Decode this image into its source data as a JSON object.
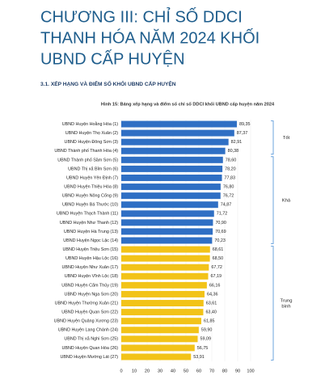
{
  "header": {
    "title_lines": [
      "CHƯƠNG III: CHỈ SỐ DDCI",
      "THANH HÓA NĂM 2024 KHỐI",
      "UBND CẤP HUYỆN"
    ],
    "section": "3.1. XẾP HẠNG VÀ ĐIỂM SỐ KHỐI UBND CẤP HUYỆN"
  },
  "chart_data": {
    "type": "hbar",
    "title": "Hình 15: Bảng xếp hạng và điểm số chỉ số DDCI khối UBND cấp huyện năm 2024",
    "categories": [
      "UBND Huyện Hoằng Hóa (1)",
      "UBND Huyện Thọ Xuân (2)",
      "UBND Huyện Đông Sơn (3)",
      "UBND Thành phố Thanh Hóa (4)",
      "UBND Thành phố Sầm Sơn (5)",
      "UBND Thị xã Bỉm Sơn (6)",
      "UBND Huyện Yên Định (7)",
      "UBND Huyện Thiệu Hóa (8)",
      "UBND Huyện Nông Cống (9)",
      "UBND Huyện Bá Thước (10)",
      "UBND Huyện Thạch Thành (11)",
      "UBND Huyện Như Thanh (12)",
      "UBND Huyện Hà Trung (13)",
      "UBND Huyện Ngọc Lặc (14)",
      "UBND Huyện Triệu Sơn (15)",
      "UBND Huyện Hậu Lộc (16)",
      "UBND Huyện Như Xuân (17)",
      "UBND Huyện Vĩnh Lộc (18)",
      "UBND Huyện Cẩm Thủy (19)",
      "UBND Huyện Nga Sơn (20)",
      "UBND Huyện Thường Xuân (21)",
      "UBND Huyện Quan Sơn (22)",
      "UBND Huyện Quảng Xương (23)",
      "UBND Huyện Lang Chánh (24)",
      "UBND Thị xã Nghi Sơn (25)",
      "UBND Huyện Quan Hóa (26)",
      "UBND Huyện Mường Lát (27)"
    ],
    "series": [
      {
        "name": "Tốt",
        "color": "#2f6fc4",
        "values": [
          89.35,
          87.37,
          82.91,
          80.38,
          null,
          null,
          null,
          null,
          null,
          null,
          null,
          null,
          null,
          null,
          null,
          null,
          null,
          null,
          null,
          null,
          null,
          null,
          null,
          null,
          null,
          null,
          null
        ],
        "value_labels": [
          "89,35",
          "87,37",
          "82,91",
          "80,38",
          null,
          null,
          null,
          null,
          null,
          null,
          null,
          null,
          null,
          null,
          null,
          null,
          null,
          null,
          null,
          null,
          null,
          null,
          null,
          null,
          null,
          null,
          null
        ]
      },
      {
        "name": "Khá",
        "color": "#2f6fc4",
        "values": [
          null,
          null,
          null,
          null,
          78.6,
          78.2,
          77.83,
          76.8,
          76.72,
          74.87,
          71.72,
          70.9,
          70.69,
          70.23,
          null,
          null,
          null,
          null,
          null,
          null,
          null,
          null,
          null,
          null,
          null,
          null,
          null
        ],
        "value_labels": [
          null,
          null,
          null,
          null,
          "78,60",
          "78,20",
          "77,83",
          "76,80",
          "76,72",
          "74,87",
          "71,72",
          "70,90",
          "70,69",
          "70,23",
          null,
          null,
          null,
          null,
          null,
          null,
          null,
          null,
          null,
          null,
          null,
          null,
          null
        ]
      },
      {
        "name": "Trung bình",
        "color": "#f2c318",
        "values": [
          null,
          null,
          null,
          null,
          null,
          null,
          null,
          null,
          null,
          null,
          null,
          null,
          null,
          null,
          68.61,
          68.5,
          67.72,
          67.19,
          66.16,
          64.36,
          63.61,
          63.4,
          61.85,
          59.9,
          59.09,
          56.75,
          53.91
        ],
        "value_labels": [
          null,
          null,
          null,
          null,
          null,
          null,
          null,
          null,
          null,
          null,
          null,
          null,
          null,
          null,
          "68,61",
          "68,50",
          "67,72",
          "67,19",
          "66,16",
          "64,36",
          "63,61",
          "63,40",
          "61,85",
          "59,90",
          "59,09",
          "56,75",
          "53,91"
        ]
      }
    ],
    "xlim": [
      0,
      100
    ],
    "xticks": [
      0,
      10,
      20,
      30,
      40,
      50,
      60,
      70,
      80,
      90,
      100
    ],
    "grid": true
  }
}
